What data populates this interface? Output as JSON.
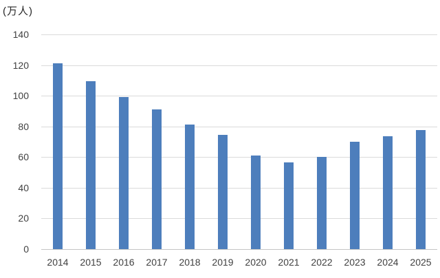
{
  "chart_data": {
    "type": "bar",
    "title": "",
    "unit_label": "(万人)",
    "categories": [
      "2014",
      "2015",
      "2016",
      "2017",
      "2018",
      "2019",
      "2020",
      "2021",
      "2022",
      "2023",
      "2024",
      "2025"
    ],
    "values": [
      121,
      109.5,
      99,
      91,
      81,
      74.5,
      61,
      56.5,
      60,
      70,
      73.5,
      77.5
    ],
    "xlabel": "",
    "ylabel": "万人",
    "ylim": [
      0,
      140
    ],
    "ytick_step": 20,
    "yticks": [
      0,
      20,
      40,
      60,
      80,
      100,
      120,
      140
    ],
    "grid": true,
    "legend_position": "none",
    "bar_color": "#4d7ebc",
    "gridline_color": "#dadada",
    "axis_line_color": "#c4c4c4",
    "tick_label_color": "#404040",
    "unit_label_color": "#262626"
  }
}
